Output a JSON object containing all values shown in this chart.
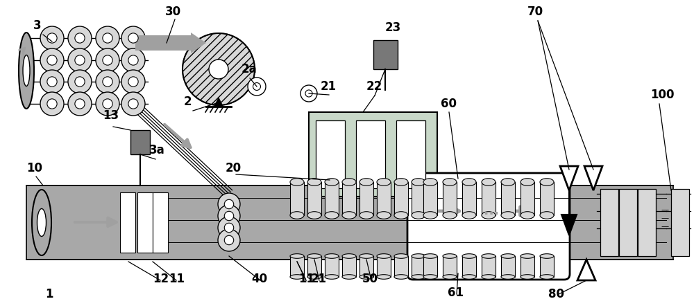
{
  "bg_color": "#ffffff",
  "line_color": "#000000",
  "gray_fill": "#b8b8b8",
  "gray_light": "#d8d8d8",
  "gray_dark": "#787878",
  "gray_medium": "#a8a8a8",
  "green_tint": "#c8d8c8",
  "arrow_color": "#a0a0a0",
  "label_fontsize": 12
}
